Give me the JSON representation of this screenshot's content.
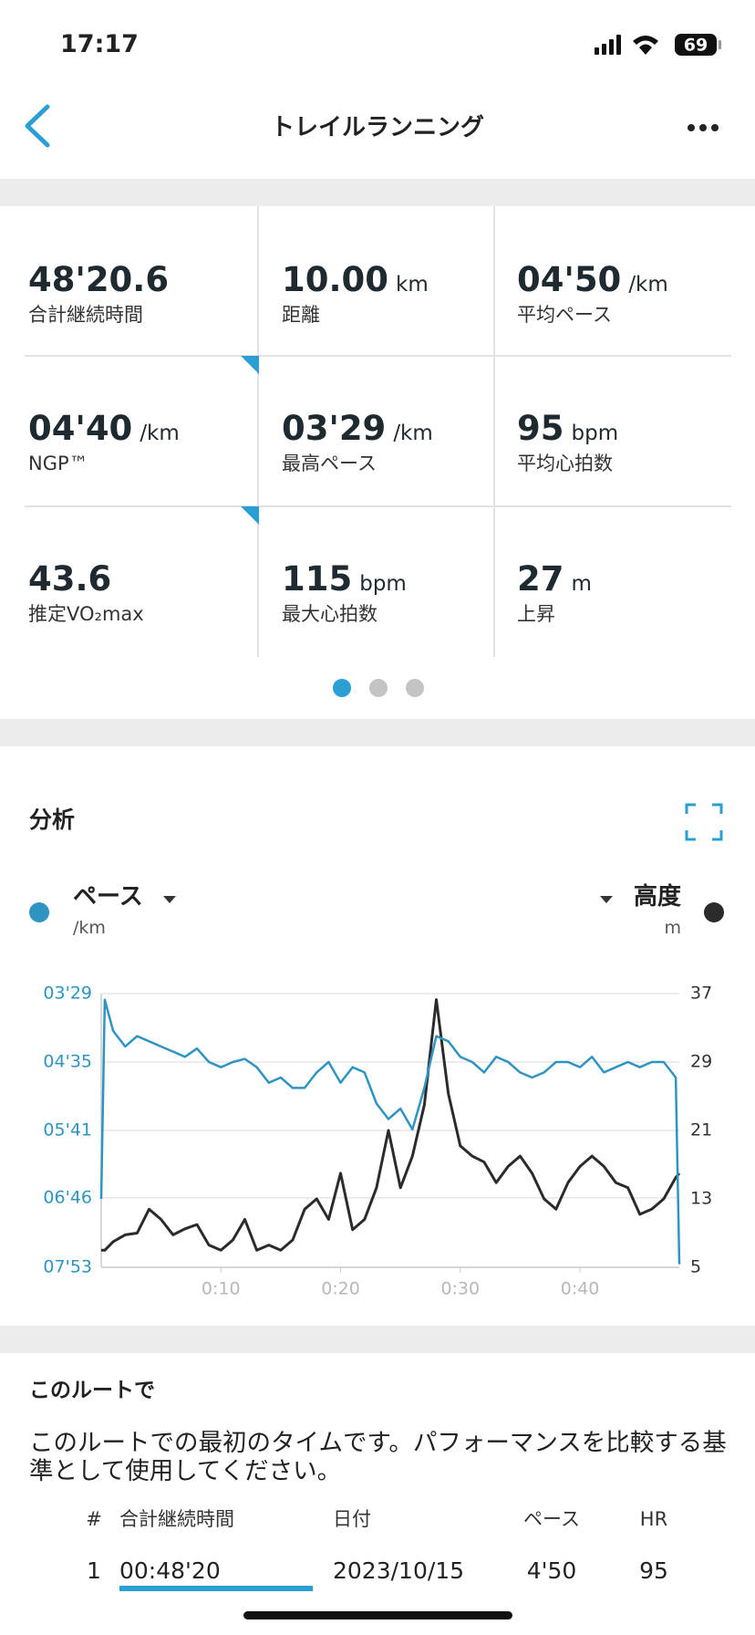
{
  "status_bar": {
    "time": "17:17",
    "battery": "69"
  },
  "header": {
    "title": "トレイルランニング"
  },
  "stats": [
    {
      "value": "48'20.6",
      "label": "合計継続時間"
    },
    {
      "value": "10.00",
      "unit": "km",
      "label": "距離"
    },
    {
      "value": "04'50",
      "unit": "/km",
      "label": "平均ペース"
    },
    {
      "value": "04'40",
      "unit": "/km",
      "label": "NGP™"
    },
    {
      "value": "03'29",
      "unit": "/km",
      "label": "最高ペース"
    },
    {
      "value": "95",
      "unit": "bpm",
      "label": "平均心拍数"
    },
    {
      "value": "43.6",
      "label": "推定VO₂max"
    },
    {
      "value": "115",
      "unit": "bpm",
      "label": "最大心拍数"
    },
    {
      "value": "27",
      "unit": "m",
      "label": "上昇"
    }
  ],
  "analysis": {
    "title": "分析"
  },
  "chart_data": {
    "type": "line",
    "x": [
      0,
      0.3,
      1,
      2,
      3,
      4,
      5,
      6,
      7,
      8,
      9,
      10,
      11,
      12,
      13,
      14,
      15,
      16,
      17,
      18,
      19,
      20,
      21,
      22,
      23,
      24,
      25,
      26,
      27,
      28,
      29,
      30,
      31,
      32,
      33,
      34,
      35,
      36,
      37,
      38,
      39,
      40,
      41,
      42,
      43,
      44,
      45,
      46,
      47,
      48,
      48.3
    ],
    "xlim": [
      0,
      48.3
    ],
    "xticks": [
      {
        "value": 10,
        "label": "0:10"
      },
      {
        "value": 20,
        "label": "0:20"
      },
      {
        "value": 30,
        "label": "0:30"
      },
      {
        "value": 40,
        "label": "0:40"
      }
    ],
    "series": [
      {
        "name": "ペース",
        "unit": "/km",
        "color": "#2f94c1",
        "values": [
          407,
          215,
          245,
          260,
          250,
          255,
          260,
          265,
          270,
          262,
          275,
          280,
          275,
          272,
          280,
          295,
          290,
          300,
          300,
          285,
          275,
          295,
          280,
          285,
          315,
          330,
          320,
          340,
          300,
          250,
          255,
          270,
          275,
          285,
          270,
          275,
          285,
          290,
          285,
          275,
          275,
          280,
          270,
          285,
          280,
          275,
          280,
          275,
          275,
          290,
          470
        ]
      },
      {
        "name": "高度",
        "unit": "m",
        "color": "#2b2b2b",
        "axis": "y2",
        "values": [
          7,
          7,
          8,
          8.8,
          9,
          11.8,
          10.6,
          8.8,
          9.5,
          10,
          7.6,
          7,
          8.2,
          10.6,
          7,
          7.6,
          7,
          8.2,
          11.8,
          13,
          10.6,
          16,
          9.4,
          10.6,
          14.3,
          21,
          14.3,
          18,
          24,
          36.3,
          25.3,
          19.2,
          18,
          17.3,
          14.9,
          16.8,
          18,
          16,
          13,
          11.8,
          14.9,
          16.8,
          18,
          16.8,
          14.9,
          14.3,
          11.2,
          11.8,
          13,
          15.5,
          16
        ]
      }
    ],
    "ylim": [
      473,
      209
    ],
    "yticks": [
      {
        "value": 209,
        "label": "03'29"
      },
      {
        "value": 275,
        "label": "04'35"
      },
      {
        "value": 341,
        "label": "05'41"
      },
      {
        "value": 406,
        "label": "06'46"
      },
      {
        "value": 473,
        "label": "07'53"
      }
    ],
    "y2lim": [
      5,
      37
    ],
    "y2ticks": [
      5,
      13,
      21,
      29,
      37
    ],
    "grid": true
  },
  "route": {
    "title": "このルートで",
    "text": "このルートでの最初のタイムです。パフォーマンスを比較する基準として使用してください。",
    "table": {
      "columns": [
        "#",
        "合計継続時間",
        "日付",
        "ペース",
        "HR"
      ],
      "rows": [
        [
          "1",
          "00:48'20",
          "2023/10/15",
          "4'50",
          "95"
        ]
      ]
    }
  }
}
